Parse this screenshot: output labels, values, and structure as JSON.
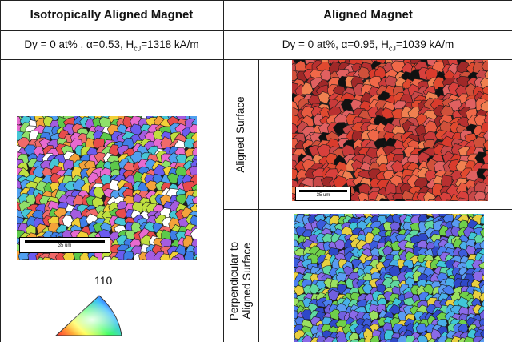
{
  "table": {
    "col_left": {
      "header": "Isotropically Aligned Magnet",
      "condition": {
        "prefix": "Dy = 0 at% , α=0.53, H",
        "sub": "cJ",
        "suffix": "=1318 kA/m"
      },
      "scale_bar": "35 um"
    },
    "col_right": {
      "header": "Aligned Magnet",
      "condition": {
        "prefix": "Dy = 0 at%,  α=0.95, H",
        "sub": "cJ",
        "suffix": "=1039 kA/m"
      },
      "row1_label": "Aligned Surface",
      "row2_label_line1": "Perpendicular to",
      "row2_label_line2": "Aligned Surface",
      "scale_bar": "35 um"
    },
    "legend": {
      "label": "110"
    }
  }
}
